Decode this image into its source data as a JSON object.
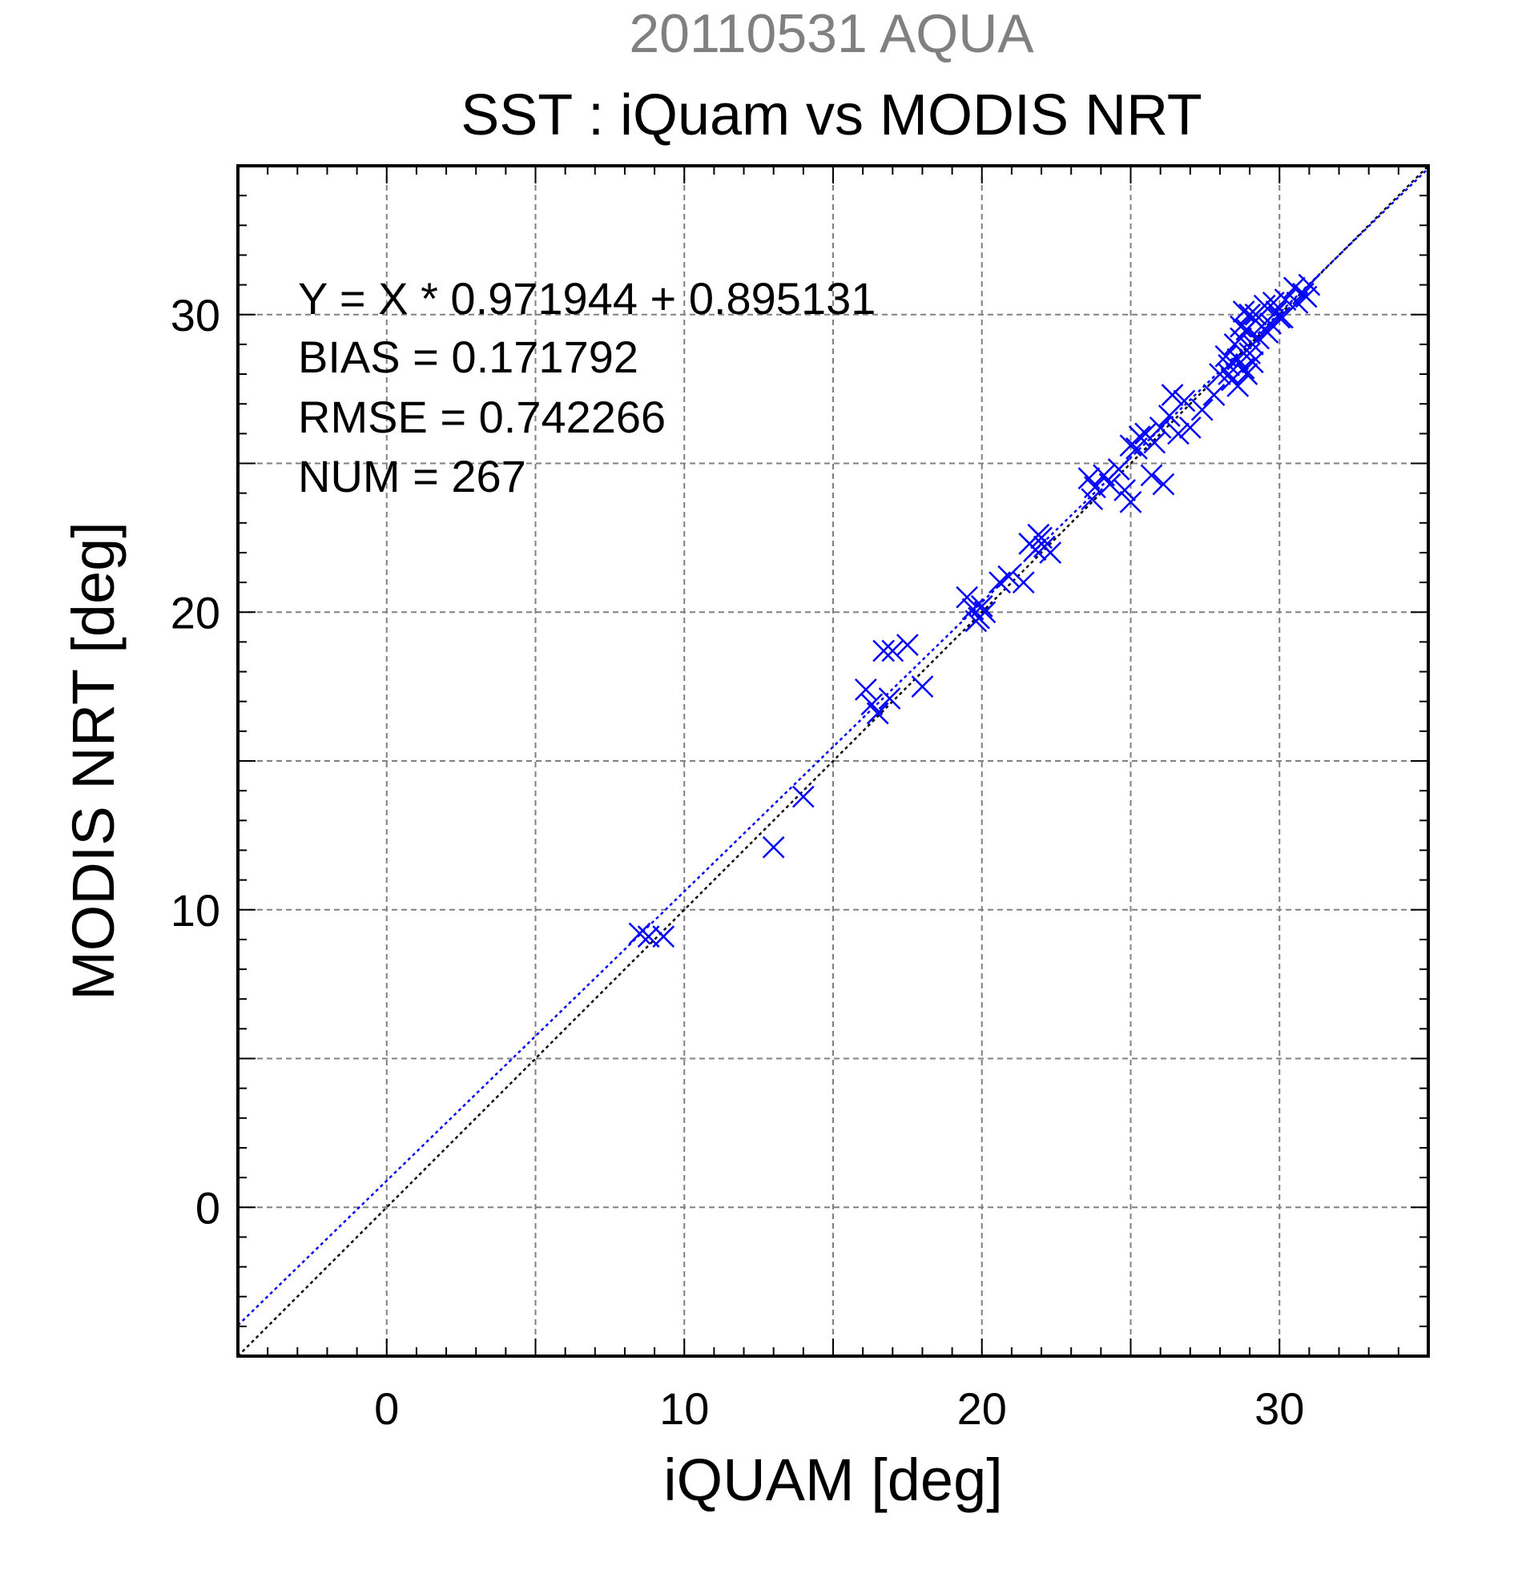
{
  "chart_data": {
    "type": "scatter",
    "supertitle": "20110531 AQUA",
    "title": "SST : iQuam vs MODIS NRT",
    "xlabel": "iQUAM [deg]",
    "ylabel": "MODIS NRT [deg]",
    "xlim": [
      -5,
      35
    ],
    "ylim": [
      -5,
      35
    ],
    "xticks": [
      0,
      10,
      20,
      30
    ],
    "yticks": [
      0,
      10,
      20,
      30
    ],
    "grid": true,
    "annotations": [
      "Y = X * 0.971944 + 0.895131",
      "BIAS = 0.171792",
      "RMSE = 0.742266",
      "NUM = 267"
    ],
    "regression": {
      "slope": 0.971944,
      "intercept": 0.895131
    },
    "colors": {
      "points": "#0000ff",
      "fit_line": "#0000ff",
      "identity_line": "#000000",
      "supertitle": "#808080",
      "grid": "#808080"
    },
    "series": [
      {
        "marker": "x",
        "x": [
          8.5,
          8.8,
          9.3,
          13.0,
          14.0,
          16.1,
          16.3,
          16.5,
          16.9,
          16.7,
          17.0,
          17.5,
          18.0,
          19.5,
          19.7,
          19.9,
          20.0,
          20.1,
          19.8,
          20.6,
          20.9,
          21.4,
          21.6,
          21.8,
          22.0,
          22.1,
          22.3,
          21.9,
          23.6,
          23.8,
          23.7,
          24.1,
          24.3,
          24.6,
          24.8,
          25.0,
          25.2,
          25.3,
          25.5,
          25.8,
          26.0,
          26.1,
          26.3,
          26.6,
          26.8,
          26.4,
          25.7,
          25.0,
          27.0,
          27.4,
          27.8,
          28.0,
          28.2,
          28.3,
          28.5,
          28.6,
          28.7,
          28.8,
          28.9,
          29.0,
          29.1,
          28.4,
          28.7,
          29.0,
          28.6,
          28.9,
          29.2,
          28.3,
          28.8,
          29.1,
          29.2,
          29.4,
          29.5,
          29.7,
          29.8,
          30.0,
          30.2,
          29.6,
          29.9,
          30.5,
          30.8,
          31.0,
          30.6,
          30.9,
          29.3,
          30.1
        ],
        "y": [
          9.2,
          9.1,
          9.1,
          12.1,
          13.8,
          17.4,
          16.9,
          16.6,
          17.1,
          18.7,
          18.7,
          18.9,
          17.5,
          20.5,
          20.1,
          19.8,
          20.2,
          20.0,
          19.7,
          21.0,
          21.2,
          21.0,
          22.3,
          22.1,
          22.5,
          22.2,
          22.0,
          22.6,
          24.5,
          24.2,
          23.8,
          24.6,
          24.3,
          24.8,
          24.1,
          23.7,
          25.5,
          25.9,
          26.0,
          25.7,
          26.2,
          24.3,
          26.6,
          26.0,
          27.1,
          27.3,
          24.6,
          25.6,
          26.2,
          26.8,
          27.3,
          28.0,
          28.6,
          28.0,
          29.0,
          28.5,
          29.2,
          28.2,
          29.5,
          28.7,
          29.0,
          27.8,
          29.6,
          30.0,
          27.6,
          28.0,
          29.8,
          28.3,
          30.1,
          28.4,
          30.0,
          29.6,
          30.3,
          29.7,
          30.4,
          29.9,
          30.5,
          29.4,
          30.1,
          30.9,
          30.7,
          31.0,
          30.4,
          30.6,
          29.2,
          29.9
        ]
      }
    ]
  }
}
